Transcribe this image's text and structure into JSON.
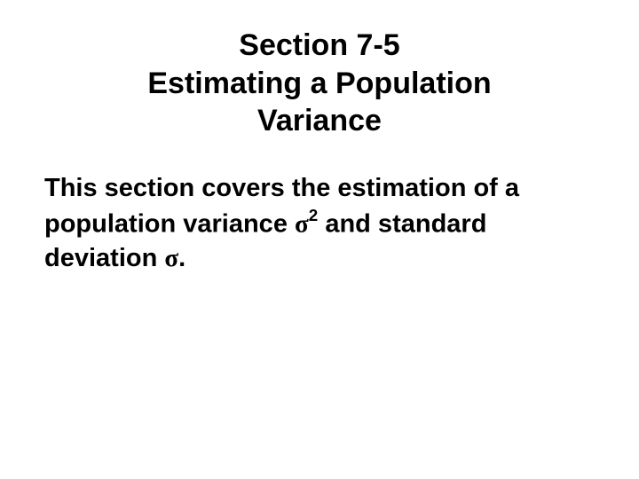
{
  "title": {
    "line1": "Section 7-5",
    "line2": "Estimating a Population",
    "line3": "Variance"
  },
  "body": {
    "part1": "This section covers the estimation of a population variance ",
    "sigma1": "σ",
    "exp": "2",
    "part2": "  and standard deviation  ",
    "sigma2": "σ",
    "period": "."
  },
  "colors": {
    "background": "#ffffff",
    "text": "#000000"
  },
  "fonts": {
    "title_size": 34,
    "body_size": 29,
    "weight": "bold"
  }
}
